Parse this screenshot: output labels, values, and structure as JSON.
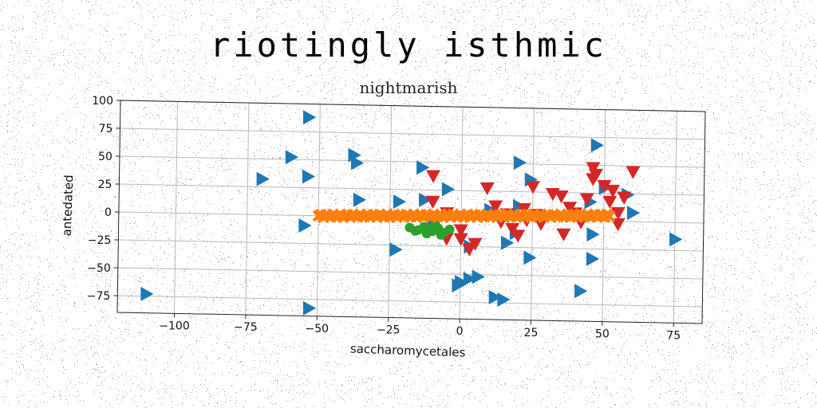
{
  "chart_data": {
    "type": "scatter",
    "title": "riotingly isthmic",
    "subtitle": "nightmarish",
    "xlabel": "saccharomycetales",
    "ylabel": "antedated",
    "xlim": [
      -120,
      85
    ],
    "ylim": [
      -90,
      100
    ],
    "xticks": [
      -100,
      -75,
      -50,
      -25,
      0,
      25,
      50,
      75
    ],
    "xtick_labels": [
      "−100",
      "−75",
      "−50",
      "−25",
      "0",
      "25",
      "50",
      "75"
    ],
    "yticks": [
      -75,
      -50,
      -25,
      0,
      25,
      50,
      75,
      100
    ],
    "ytick_labels": [
      "−75",
      "−50",
      "−25",
      "0",
      "25",
      "50",
      "75",
      "100"
    ],
    "grid": true,
    "legend": "none",
    "series": [
      {
        "marker": "triangle-right",
        "color": "#1f77b4",
        "points": [
          [
            -54,
            88
          ],
          [
            -60,
            52
          ],
          [
            -38,
            55
          ],
          [
            -37,
            48
          ],
          [
            -54,
            35
          ],
          [
            -70,
            32
          ],
          [
            -36,
            15
          ],
          [
            -22,
            14
          ],
          [
            -13,
            16
          ],
          [
            -14,
            45
          ],
          [
            -5,
            26
          ],
          [
            -55,
            -9
          ],
          [
            -23,
            -29
          ],
          [
            -10,
            -5
          ],
          [
            10,
            8
          ],
          [
            3,
            -25
          ],
          [
            0,
            -57
          ],
          [
            3,
            -54
          ],
          [
            6,
            -52
          ],
          [
            -1,
            -60
          ],
          [
            12,
            -70
          ],
          [
            15,
            -72
          ],
          [
            16,
            -21
          ],
          [
            24,
            -34
          ],
          [
            19,
            -12
          ],
          [
            20,
            51
          ],
          [
            24,
            36
          ],
          [
            42,
            -63
          ],
          [
            47,
            68
          ],
          [
            46,
            -12
          ],
          [
            46,
            -34
          ],
          [
            45,
            17
          ],
          [
            50,
            30
          ],
          [
            58,
            24
          ],
          [
            60,
            8
          ],
          [
            75,
            -15
          ],
          [
            -110,
            -73
          ],
          [
            -53,
            -83
          ],
          [
            20,
            12
          ],
          [
            30,
            4
          ]
        ]
      },
      {
        "marker": "triangle-down",
        "color": "#d62728",
        "points": [
          [
            -10,
            38
          ],
          [
            -10,
            15
          ],
          [
            -5,
            5
          ],
          [
            0,
            -10
          ],
          [
            0,
            -18
          ],
          [
            3,
            -27
          ],
          [
            5,
            -22
          ],
          [
            9,
            28
          ],
          [
            12,
            12
          ],
          [
            14,
            -2
          ],
          [
            16,
            5
          ],
          [
            18,
            -8
          ],
          [
            20,
            -14
          ],
          [
            22,
            10
          ],
          [
            23,
            0
          ],
          [
            25,
            30
          ],
          [
            26,
            5
          ],
          [
            28,
            -3
          ],
          [
            32,
            24
          ],
          [
            35,
            22
          ],
          [
            36,
            -12
          ],
          [
            38,
            12
          ],
          [
            40,
            7
          ],
          [
            42,
            -1
          ],
          [
            44,
            20
          ],
          [
            46,
            48
          ],
          [
            46,
            38
          ],
          [
            47,
            42
          ],
          [
            50,
            32
          ],
          [
            52,
            18
          ],
          [
            53,
            28
          ],
          [
            55,
            8
          ],
          [
            55,
            -2
          ],
          [
            57,
            22
          ],
          [
            60,
            45
          ],
          [
            -5,
            -18
          ]
        ]
      },
      {
        "marker": "circle",
        "color": "#2ca02c",
        "points": [
          [
            -18,
            -9
          ],
          [
            -15,
            -11
          ],
          [
            -13,
            -8
          ],
          [
            -10,
            -12
          ],
          [
            -8,
            -9
          ],
          [
            -6,
            -13
          ],
          [
            -12,
            -14
          ],
          [
            -16,
            -12
          ],
          [
            -9,
            -6
          ],
          [
            -4,
            -10
          ],
          [
            -11,
            -10
          ],
          [
            -7,
            -15
          ]
        ]
      },
      {
        "marker": "x",
        "color": "#ff7f0e",
        "line": {
          "x_start": -50,
          "x_end": 52,
          "y_start": 0,
          "y_end": 5,
          "count": 120
        }
      }
    ]
  }
}
